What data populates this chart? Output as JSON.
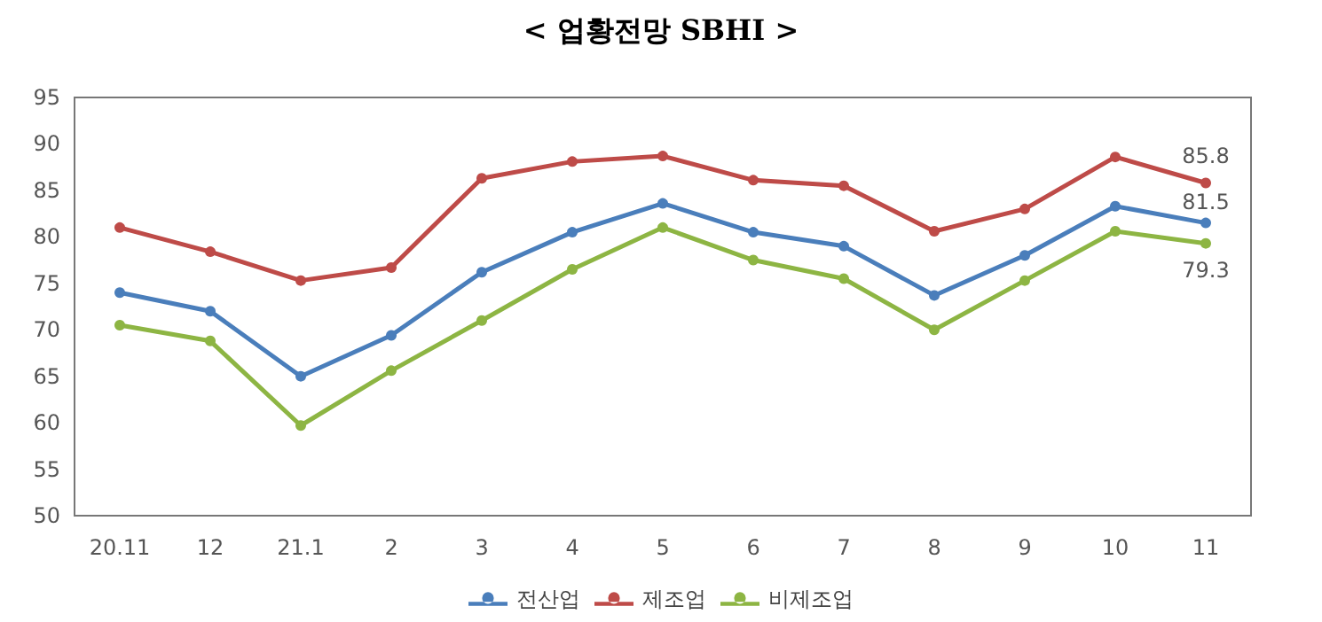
{
  "chart_data": {
    "type": "line",
    "title": "< 업황전망 SBHI >",
    "categories": [
      "20.11",
      "12",
      "21.1",
      "2",
      "3",
      "4",
      "5",
      "6",
      "7",
      "8",
      "9",
      "10",
      "11"
    ],
    "series": [
      {
        "name": "전산업",
        "color": "#4a7ebb",
        "values": [
          74.0,
          72.0,
          65.0,
          69.4,
          76.2,
          80.5,
          83.6,
          80.5,
          79.0,
          73.7,
          78.0,
          83.3,
          81.5
        ],
        "value_labels": [
          null,
          null,
          null,
          null,
          null,
          null,
          null,
          null,
          null,
          null,
          null,
          null,
          "81.5"
        ]
      },
      {
        "name": "제조업",
        "color": "#be4b48",
        "values": [
          81.0,
          78.4,
          75.3,
          76.7,
          86.3,
          88.1,
          88.7,
          86.1,
          85.5,
          80.6,
          83.0,
          88.6,
          85.8
        ],
        "value_labels": [
          null,
          null,
          null,
          null,
          null,
          null,
          null,
          null,
          null,
          null,
          null,
          null,
          "85.8"
        ]
      },
      {
        "name": "비제조업",
        "color": "#8db543",
        "values": [
          70.5,
          68.8,
          59.7,
          65.6,
          71.0,
          76.5,
          81.0,
          77.5,
          75.5,
          70.0,
          75.3,
          80.6,
          79.3
        ],
        "value_labels": [
          null,
          null,
          null,
          null,
          null,
          null,
          null,
          null,
          null,
          null,
          null,
          null,
          "79.3"
        ]
      }
    ],
    "ylim": [
      50,
      95
    ],
    "yticks": [
      50,
      55,
      60,
      65,
      70,
      75,
      80,
      85,
      90,
      95
    ],
    "grid": false,
    "legend": "bottom",
    "marker": "circle",
    "line_style": "solid"
  }
}
